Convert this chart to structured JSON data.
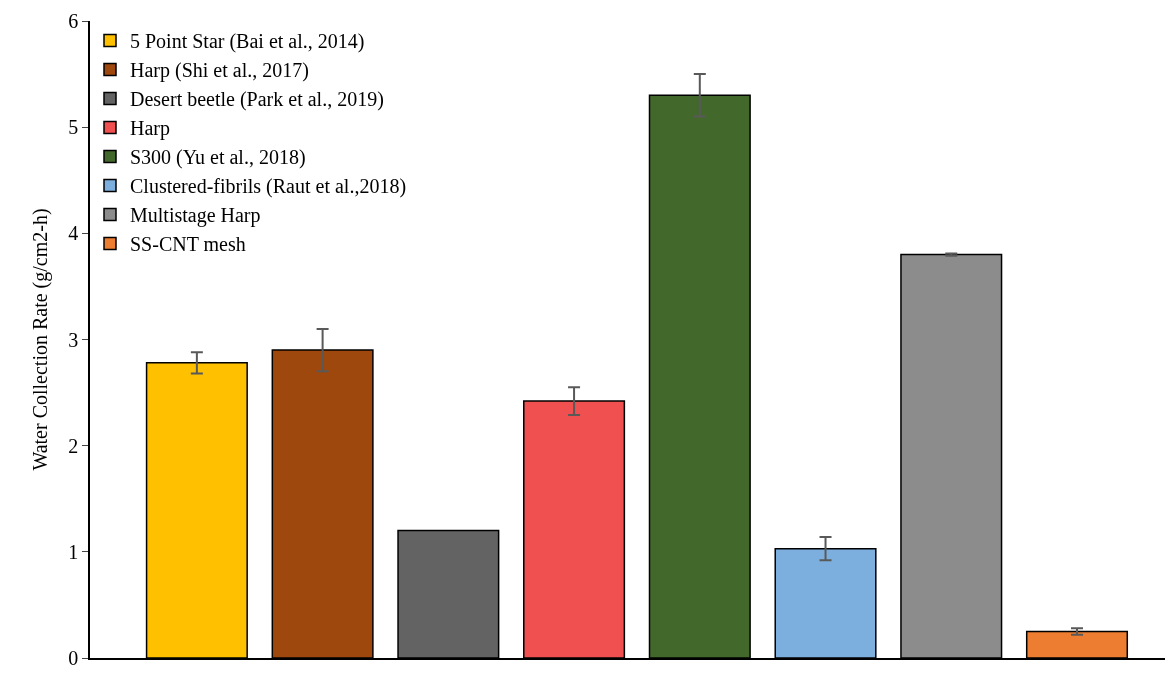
{
  "chart_data": {
    "type": "bar",
    "ylabel": "Water Collection Rate (g/cm2-h)",
    "categories": [
      null,
      null,
      null,
      null,
      null,
      null,
      null,
      null
    ],
    "series": [
      {
        "name": "5 Point Star (Bai et al., 2014)",
        "color": "#ffc000",
        "values": [
          2.78,
          null,
          null,
          null,
          null,
          null,
          null,
          null
        ],
        "errors": [
          0.1,
          null,
          null,
          null,
          null,
          null,
          null,
          null
        ]
      },
      {
        "name": "Harp (Shi et al., 2017)",
        "color": "#9e480e",
        "values": [
          null,
          2.9,
          null,
          null,
          null,
          null,
          null,
          null
        ],
        "errors": [
          null,
          0.2,
          null,
          null,
          null,
          null,
          null,
          null
        ]
      },
      {
        "name": "Desert beetle (Park et al., 2019)",
        "color": "#636363",
        "values": [
          null,
          null,
          1.2,
          null,
          null,
          null,
          null,
          null
        ]
      },
      {
        "name": "Harp",
        "color": "#f05050",
        "values": [
          null,
          null,
          null,
          2.42,
          null,
          null,
          null,
          null
        ],
        "errors": [
          null,
          null,
          null,
          0.13,
          null,
          null,
          null,
          null
        ]
      },
      {
        "name": "S300 (Yu et al., 2018)",
        "color": "#43682b",
        "values": [
          null,
          null,
          null,
          null,
          5.3,
          null,
          null,
          null
        ],
        "errors": [
          null,
          null,
          null,
          null,
          0.2,
          null,
          null,
          null
        ]
      },
      {
        "name": "Clustered-fibrils (Raut et al.,2018)",
        "color": "#7cafdd",
        "values": [
          null,
          null,
          null,
          null,
          null,
          1.03,
          null,
          null
        ],
        "errors": [
          null,
          null,
          null,
          null,
          null,
          0.11,
          null,
          null
        ]
      },
      {
        "name": "Multistage Harp",
        "color": "#8c8c8c",
        "values": [
          null,
          null,
          null,
          null,
          null,
          null,
          3.8,
          null
        ],
        "errors": [
          null,
          null,
          null,
          null,
          null,
          null,
          0.01,
          null
        ]
      },
      {
        "name": "SS-CNT mesh",
        "color": "#ed7d31",
        "values": [
          null,
          null,
          null,
          null,
          null,
          null,
          null,
          0.25
        ],
        "errors": [
          null,
          null,
          null,
          null,
          null,
          null,
          null,
          0.03
        ]
      }
    ],
    "ylim": [
      0,
      6
    ],
    "yticks": [
      0,
      1,
      2,
      3,
      4,
      5,
      6
    ],
    "legend": "top left"
  }
}
